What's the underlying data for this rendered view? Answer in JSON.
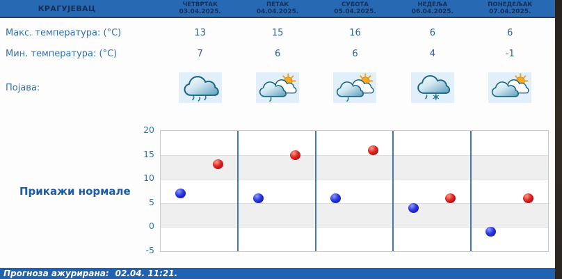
{
  "header": {
    "city": "КРАГУЈЕВАЦ",
    "days": [
      {
        "name": "ЧЕТВРТАК",
        "date": "03.04.2025."
      },
      {
        "name": "ПЕТАК",
        "date": "04.04.2025."
      },
      {
        "name": "СУБОТА",
        "date": "05.04.2025."
      },
      {
        "name": "НЕДЕЉА",
        "date": "06.04.2025."
      },
      {
        "name": "ПОНЕДЕЉАК",
        "date": "07.04.2025."
      }
    ]
  },
  "rows": {
    "max_temp": {
      "label": "Макс. температура: (°C)",
      "values": [
        "13",
        "15",
        "16",
        "6",
        "6"
      ]
    },
    "min_temp": {
      "label": "Мин. температура: (°C)",
      "values": [
        "7",
        "6",
        "6",
        "4",
        "-1"
      ]
    },
    "phenomena": {
      "label": "Појава:",
      "icons": [
        {
          "name": "cloud-rain-icon",
          "type": "rain"
        },
        {
          "name": "sun-cloud-rain-icon",
          "type": "sun-rain"
        },
        {
          "name": "sun-cloud-rain-icon",
          "type": "sun-rain"
        },
        {
          "name": "cloud-sleet-icon",
          "type": "sleet"
        },
        {
          "name": "sun-cloud-icon",
          "type": "sun-cloud"
        }
      ]
    }
  },
  "normals_link": "Прикажи нормале",
  "chart_data": {
    "type": "scatter",
    "categories": [
      "03.04.2025.",
      "04.04.2025.",
      "05.04.2025.",
      "06.04.2025.",
      "07.04.2025."
    ],
    "series": [
      {
        "name": "Макс. температура (°C)",
        "color": "#cc1616",
        "values": [
          13,
          15,
          16,
          6,
          6
        ]
      },
      {
        "name": "Мин. температура (°C)",
        "color": "#1a1ecb",
        "values": [
          7,
          6,
          6,
          4,
          -1
        ]
      }
    ],
    "ylim": [
      -5,
      20
    ],
    "yticks": [
      20,
      15,
      10,
      5,
      0,
      -5
    ],
    "grid": "horizontal alternating bands, vertical day separators",
    "legend": "none",
    "title": "",
    "xlabel": "",
    "ylabel": ""
  },
  "footer": {
    "updated_label": "Прогноза ажурирана:",
    "updated_value": "02.04. 11:21."
  },
  "colors": {
    "header_bg": "#2769b2",
    "header_text": "#153058",
    "footer_bg": "#2161ae",
    "label_blue": "#2f6fb4",
    "link_blue": "#1d5ca6",
    "max_point": "#cc1616",
    "min_point": "#1a1ecb",
    "day_separator": "#4679aa",
    "band_gray": "#efefef",
    "icon_box_bg": "#e0eff9"
  }
}
